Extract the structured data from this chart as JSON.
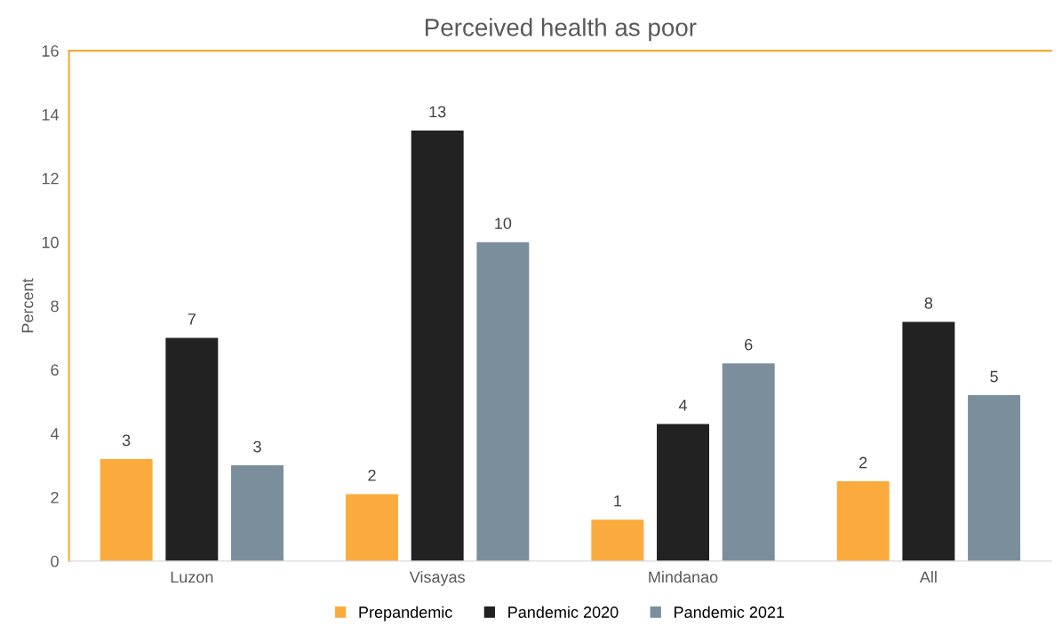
{
  "chart_data": {
    "type": "bar",
    "title": "Perceived health as poor",
    "ylabel": "Percent",
    "categories": [
      "Luzon",
      "Visayas",
      "Mindanao",
      "All"
    ],
    "series": [
      {
        "name": "Prepandemic",
        "color": "#fbab3d",
        "values": [
          3.2,
          2.1,
          1.3,
          2.5
        ],
        "value_labels": [
          "3",
          "2",
          "1",
          "2"
        ]
      },
      {
        "name": "Pandemic 2020",
        "color": "#222222",
        "values": [
          7.0,
          13.5,
          4.3,
          7.5
        ],
        "value_labels": [
          "7",
          "13",
          "4",
          "8"
        ]
      },
      {
        "name": "Pandemic 2021",
        "color": "#7a8f9b",
        "values": [
          3.0,
          10.0,
          6.2,
          5.2
        ],
        "value_labels": [
          "3",
          "10",
          "6",
          "5"
        ]
      }
    ],
    "ylim": [
      0,
      16
    ],
    "yticks": [
      0,
      2,
      4,
      6,
      8,
      10,
      12,
      14,
      16
    ],
    "grid": false,
    "legend": "bottom"
  }
}
